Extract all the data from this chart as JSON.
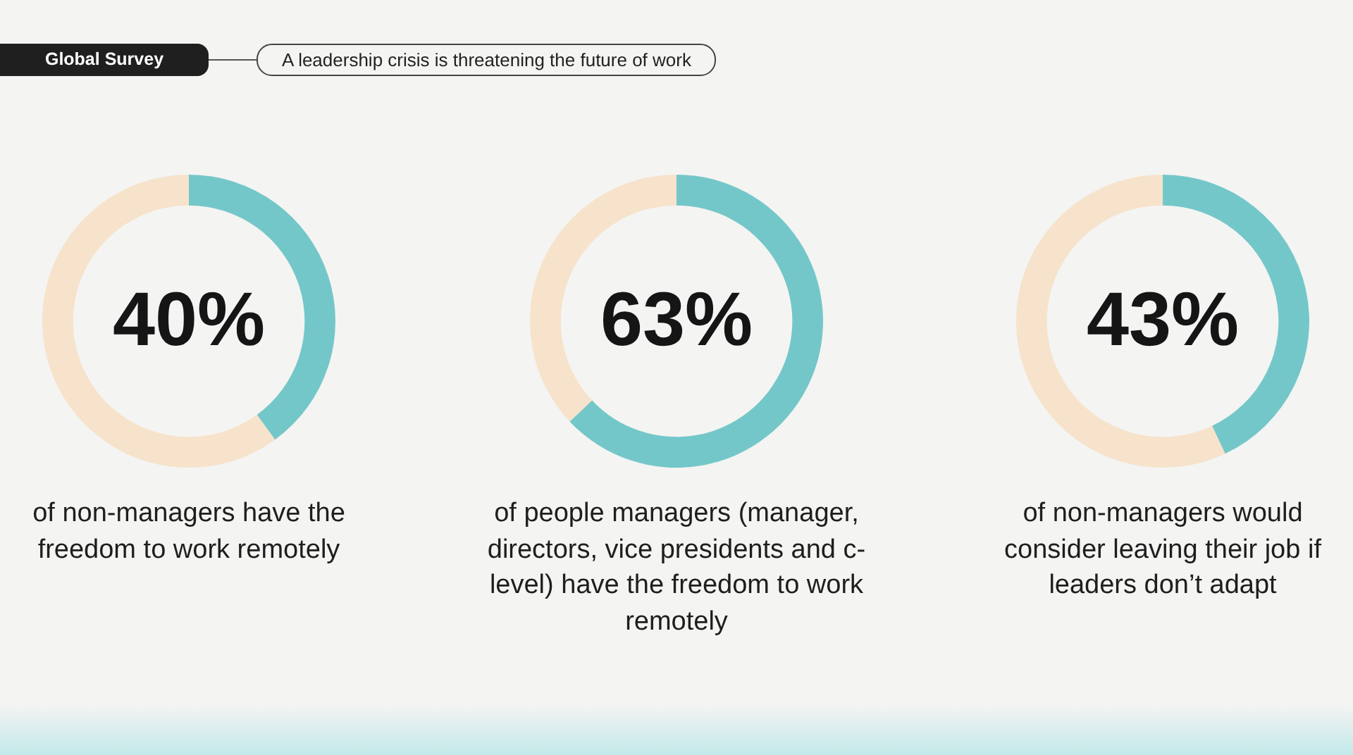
{
  "chart_data": [
    {
      "type": "donut",
      "title": "Global Survey",
      "subtitle": "A leadership crisis is threatening the future of work",
      "categories": [
        null,
        null
      ],
      "values": [
        40,
        60
      ],
      "colors": [
        "#74c7c9",
        "#f7e2cb"
      ],
      "value_labels": [
        "40%",
        null
      ],
      "annotations": [
        "of non-managers have the freedom to work remotely"
      ],
      "legend": false
    },
    {
      "type": "donut",
      "categories": [
        null,
        null
      ],
      "values": [
        63,
        37
      ],
      "colors": [
        "#74c7c9",
        "#f7e2cb"
      ],
      "value_labels": [
        "63%",
        null
      ],
      "annotations": [
        "of people managers (manager, directors, vice presidents and c-level) have the freedom to work remotely"
      ],
      "legend": false
    },
    {
      "type": "donut",
      "categories": [
        null,
        null
      ],
      "values": [
        43,
        57
      ],
      "colors": [
        "#74c7c9",
        "#f7e2cb"
      ],
      "value_labels": [
        "43%",
        null
      ],
      "annotations": [
        "of non-managers would consider leaving their job if leaders don’t adapt"
      ],
      "legend": false
    }
  ]
}
